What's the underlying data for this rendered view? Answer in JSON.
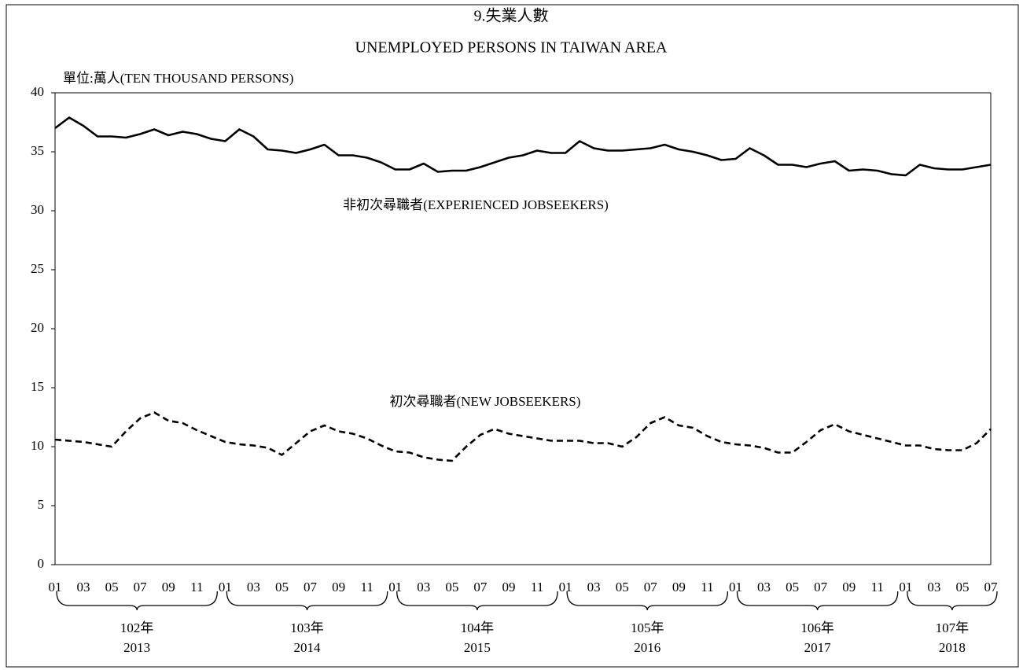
{
  "chart_data": {
    "type": "line",
    "title": "9.失業人數",
    "subtitle": "UNEMPLOYED PERSONS IN TAIWAN AREA",
    "y_label": "單位:萬人(TEN THOUSAND PERSONS)",
    "categories": [
      "01",
      null,
      "03",
      null,
      "05",
      null,
      "07",
      null,
      "09",
      null,
      "11",
      null,
      "01",
      null,
      "03",
      null,
      "05",
      null,
      "07",
      null,
      "09",
      null,
      "11",
      null,
      "01",
      null,
      "03",
      null,
      "05",
      null,
      "07",
      null,
      "09",
      null,
      "11",
      null,
      "01",
      null,
      "03",
      null,
      "05",
      null,
      "07",
      null,
      "09",
      null,
      "11",
      null,
      "01",
      null,
      "03",
      null,
      "05",
      null,
      "07",
      null,
      "09",
      null,
      "11",
      null,
      "01",
      null,
      "03",
      null,
      "05",
      null,
      "07"
    ],
    "groups": [
      {
        "roc": "102年",
        "year": "2013"
      },
      {
        "roc": "103年",
        "year": "2014"
      },
      {
        "roc": "104年",
        "year": "2015"
      },
      {
        "roc": "105年",
        "year": "2016"
      },
      {
        "roc": "106年",
        "year": "2017"
      },
      {
        "roc": "107年",
        "year": "2018"
      }
    ],
    "series": [
      {
        "name": "非初次尋職者(EXPERIENCED  JOBSEEKERS)",
        "color": "#000000",
        "dashed": false,
        "values": [
          37.0,
          37.9,
          37.2,
          36.3,
          36.3,
          36.2,
          36.5,
          36.9,
          36.4,
          36.7,
          36.5,
          36.1,
          35.9,
          36.9,
          36.3,
          35.2,
          35.1,
          34.9,
          35.2,
          35.6,
          34.7,
          34.7,
          34.5,
          34.1,
          33.5,
          33.5,
          34.0,
          33.3,
          33.4,
          33.4,
          33.7,
          34.1,
          34.5,
          34.7,
          35.1,
          34.9,
          34.9,
          35.9,
          35.3,
          35.1,
          35.1,
          35.2,
          35.3,
          35.6,
          35.2,
          35.0,
          34.7,
          34.3,
          34.4,
          35.3,
          34.7,
          33.9,
          33.9,
          33.7,
          34.0,
          34.2,
          33.4,
          33.5,
          33.4,
          33.1,
          33.0,
          33.9,
          33.6,
          33.5,
          33.5,
          33.7,
          33.9
        ]
      },
      {
        "name": "初次尋職者(NEW  JOBSEEKERS)",
        "color": "#000000",
        "dashed": true,
        "values": [
          10.6,
          10.5,
          10.4,
          10.2,
          10.0,
          11.3,
          12.4,
          12.9,
          12.2,
          12.0,
          11.4,
          10.9,
          10.4,
          10.2,
          10.1,
          9.9,
          9.3,
          10.3,
          11.3,
          11.8,
          11.3,
          11.1,
          10.7,
          10.1,
          9.6,
          9.5,
          9.1,
          8.9,
          8.8,
          10.0,
          11.0,
          11.5,
          11.1,
          10.9,
          10.7,
          10.5,
          10.5,
          10.5,
          10.3,
          10.3,
          10.0,
          10.8,
          12.0,
          12.5,
          11.8,
          11.6,
          10.9,
          10.4,
          10.2,
          10.1,
          9.9,
          9.5,
          9.5,
          10.4,
          11.4,
          11.9,
          11.3,
          11.0,
          10.7,
          10.4,
          10.1,
          10.1,
          9.8,
          9.7,
          9.7,
          10.3,
          11.5
        ]
      }
    ],
    "ylim": [
      0,
      40
    ],
    "yticks": [
      0,
      5,
      10,
      15,
      20,
      25,
      30,
      35,
      40
    ],
    "grid": false
  }
}
